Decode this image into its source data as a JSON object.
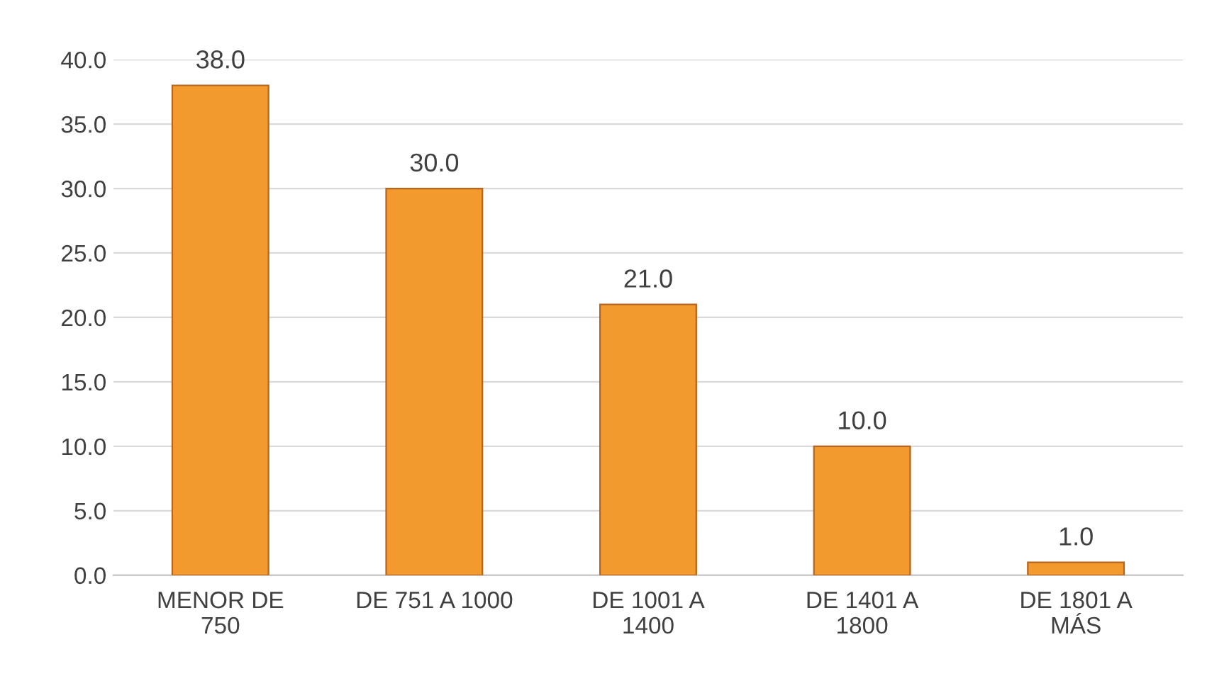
{
  "chart_data": {
    "type": "bar",
    "categories": [
      "MENOR DE\n750",
      "DE 751 A 1000",
      "DE 1001 A\n1400",
      "DE 1401 A\n1800",
      "DE 1801 A\nMÁS"
    ],
    "values": [
      38.0,
      30.0,
      21.0,
      10.0,
      1.0
    ],
    "value_labels": [
      "38.0",
      "30.0",
      "21.0",
      "10.0",
      "1.0"
    ],
    "color": "#f39a2e",
    "ylim": [
      0,
      40
    ],
    "yticks": [
      {
        "value": 0,
        "label": "0.0"
      },
      {
        "value": 5,
        "label": "5.0"
      },
      {
        "value": 10,
        "label": "10.0"
      },
      {
        "value": 15,
        "label": "15.0"
      },
      {
        "value": 20,
        "label": "20.0"
      },
      {
        "value": 25,
        "label": "25.0"
      },
      {
        "value": 30,
        "label": "30.0"
      },
      {
        "value": 35,
        "label": "35.0"
      },
      {
        "value": 40,
        "label": "40.0"
      }
    ],
    "grid": "y"
  }
}
